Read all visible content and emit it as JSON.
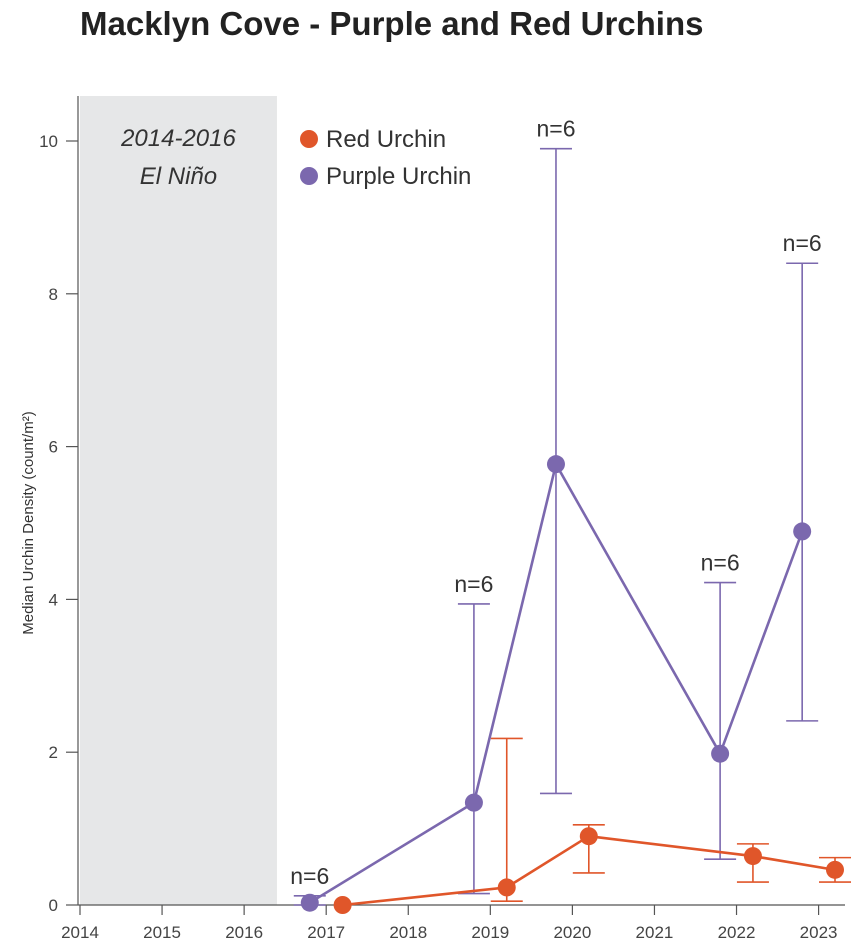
{
  "chart_data": {
    "type": "line",
    "title": "Macklyn Cove - Purple and Red Urchins",
    "ylabel": "Median Urchin Density (count/m²)",
    "xlabel": "",
    "xlim": [
      2014,
      2023.2
    ],
    "ylim": [
      0,
      10.8
    ],
    "yticks": [
      0,
      2,
      4,
      6,
      8,
      10
    ],
    "xticks": [
      2014,
      2015,
      2016,
      2017,
      2018,
      2019,
      2020,
      2021,
      2022,
      2023
    ],
    "grid": false,
    "legend_position": "top-center",
    "shaded_region": {
      "x_start": 2014,
      "x_end": 2016.4,
      "label_line1": "2014-2016",
      "label_line2": "El Niño",
      "color": "#e6e7e8"
    },
    "series": [
      {
        "name": "Red Urchin",
        "color": "#e0562a",
        "points": [
          {
            "x": 2017.2,
            "y": 0.0,
            "lo": null,
            "hi": null
          },
          {
            "x": 2019.2,
            "y": 0.23,
            "lo": 0.05,
            "hi": 2.18
          },
          {
            "x": 2020.2,
            "y": 0.9,
            "lo": 0.42,
            "hi": 1.05
          },
          {
            "x": 2022.2,
            "y": 0.64,
            "lo": 0.3,
            "hi": 0.8
          },
          {
            "x": 2023.2,
            "y": 0.46,
            "lo": 0.3,
            "hi": 0.62
          }
        ]
      },
      {
        "name": "Purple Urchin",
        "color": "#7b68ae",
        "points": [
          {
            "x": 2016.8,
            "y": 0.03,
            "lo": 0.0,
            "hi": 0.12,
            "n_label": "n=6"
          },
          {
            "x": 2018.8,
            "y": 1.34,
            "lo": 0.15,
            "hi": 3.94,
            "n_label": "n=6"
          },
          {
            "x": 2019.8,
            "y": 5.77,
            "lo": 1.46,
            "hi": 9.9,
            "n_label": "n=6"
          },
          {
            "x": 2021.8,
            "y": 1.98,
            "lo": 0.6,
            "hi": 4.22,
            "n_label": "n=6"
          },
          {
            "x": 2022.8,
            "y": 4.89,
            "lo": 2.41,
            "hi": 8.4,
            "n_label": "n=6"
          }
        ]
      }
    ]
  }
}
